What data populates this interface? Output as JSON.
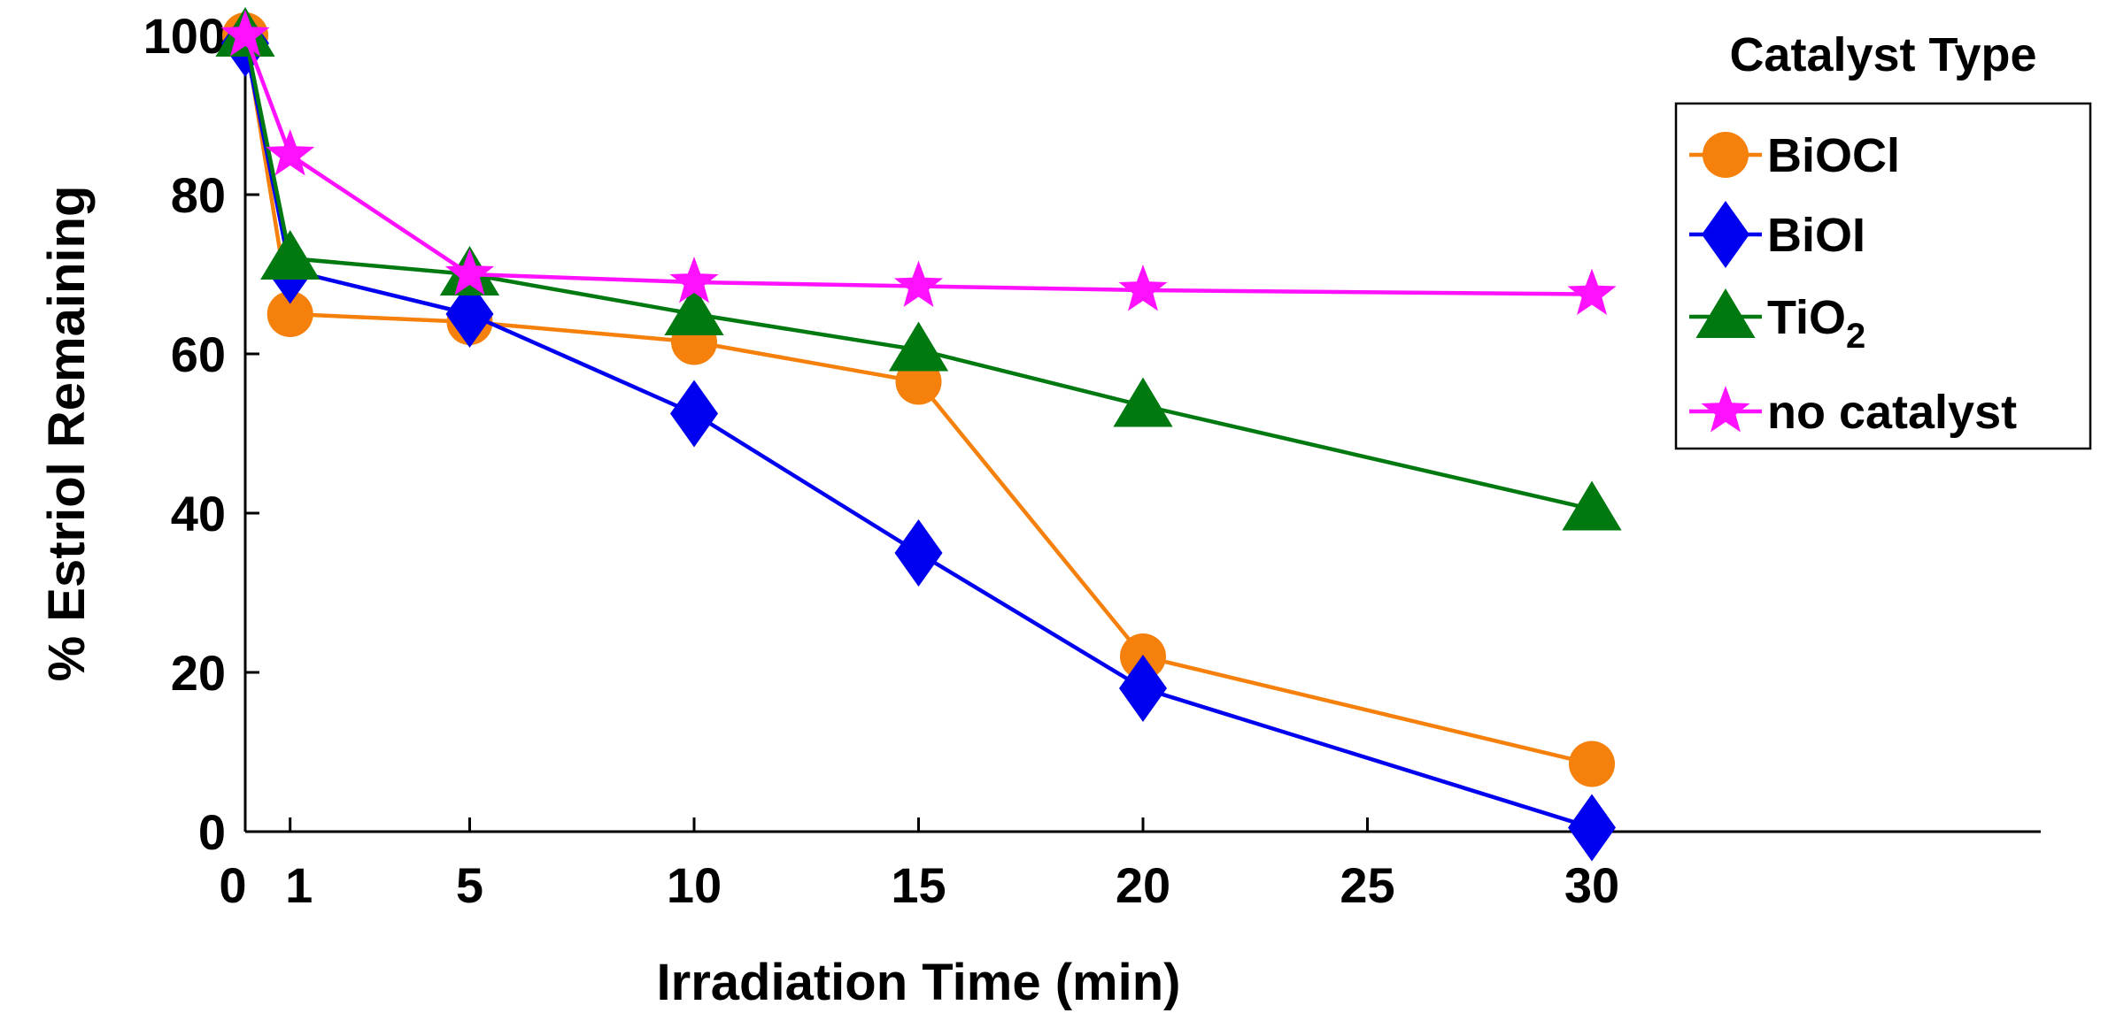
{
  "chart_data": {
    "type": "line",
    "title": "",
    "xlabel": "Irradiation Time (min)",
    "ylabel": "% Estriol Remaining",
    "x": [
      0,
      1,
      5,
      10,
      15,
      20,
      30
    ],
    "xticks": [
      0,
      1,
      5,
      10,
      15,
      20,
      25,
      30
    ],
    "xtick_labels": [
      "0",
      "1",
      "5",
      "10",
      "15",
      "20",
      "25",
      "30"
    ],
    "xlim": [
      0,
      40
    ],
    "ylim": [
      0,
      100
    ],
    "yticks": [
      0,
      20,
      40,
      60,
      80,
      100
    ],
    "ytick_labels": [
      "0",
      "20",
      "40",
      "60",
      "80",
      "100"
    ],
    "legend": {
      "title": "Catalyst Type",
      "position": "top-right"
    },
    "series": [
      {
        "name": "BiOCl",
        "label_main": "BiOCl",
        "label_sub": "",
        "color": "#f5800b",
        "marker": "circle",
        "values": [
          100,
          65,
          64,
          61.5,
          56.5,
          22,
          8.5
        ]
      },
      {
        "name": "BiOI",
        "label_main": "BiOI",
        "label_sub": "",
        "color": "#0000f0",
        "marker": "diamond",
        "values": [
          99,
          70.5,
          65,
          52.5,
          35,
          18,
          0.5
        ]
      },
      {
        "name": "TiO2",
        "label_main": "TiO",
        "label_sub": "2",
        "color": "#007a10",
        "marker": "triangle",
        "values": [
          100,
          72,
          70,
          65,
          60.5,
          53.5,
          40.5
        ]
      },
      {
        "name": "no catalyst",
        "label_main": "no catalyst",
        "label_sub": "",
        "color": "#ff10ff",
        "marker": "star",
        "values": [
          100,
          85,
          70,
          69,
          68.5,
          68,
          67.5
        ]
      }
    ]
  }
}
